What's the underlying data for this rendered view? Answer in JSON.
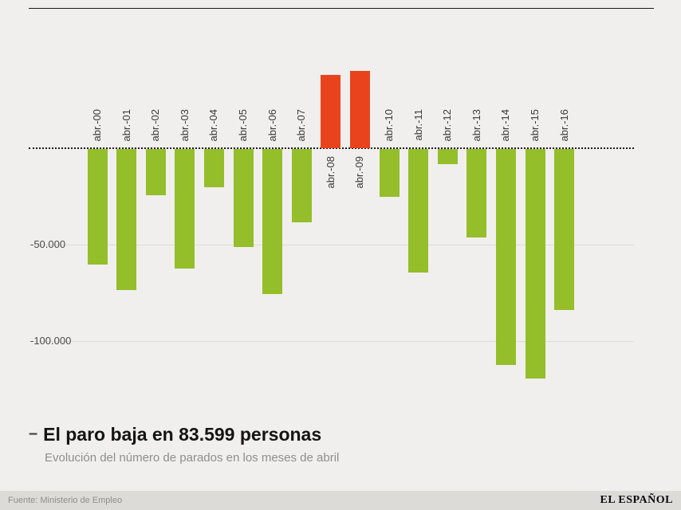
{
  "chart_data": {
    "type": "bar",
    "categories": [
      "abr.-00",
      "abr.-01",
      "abr.-02",
      "abr.-03",
      "abr.-04",
      "abr.-05",
      "abr.-06",
      "abr.-07",
      "abr.-08",
      "abr.-09",
      "abr.-10",
      "abr.-11",
      "abr.-12",
      "abr.-13",
      "abr.-14",
      "abr.-15",
      "abr.-16"
    ],
    "values": [
      -60000,
      -73000,
      -24000,
      -62000,
      -20000,
      -51000,
      -75000,
      -38000,
      38000,
      40000,
      -25000,
      -64000,
      -8000,
      -46000,
      -112000,
      -119000,
      -83599
    ],
    "title": "El paro baja en 83.599 personas",
    "subtitle": "Evolución del número de parados en los meses de abril",
    "xlabel": "",
    "ylabel": "",
    "ylim": [
      -130000,
      45000
    ],
    "yticks": [
      {
        "value": -50000,
        "label": "-50.000"
      },
      {
        "value": -100000,
        "label": "-100.000"
      }
    ],
    "grid": true,
    "legend": false,
    "colors": {
      "negative_bar": "#94be2a",
      "positive_bar": "#e8431d",
      "background": "#f0efed",
      "zero_line": "#1a1a1a"
    }
  },
  "title_block": {
    "dash": "–",
    "title": "El paro baja en 83.599 personas",
    "subtitle": "Evolución del número de parados en los meses de abril"
  },
  "footer": {
    "source": "Fuente: Ministerio de Empleo",
    "logo": "EL ESPAÑOL"
  }
}
